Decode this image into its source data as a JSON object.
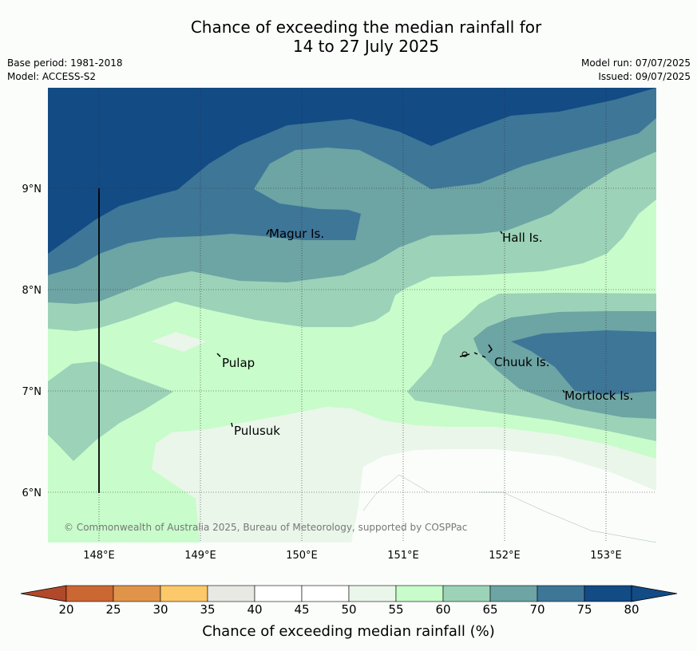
{
  "title_line1": "Chance of exceeding the median rainfall for",
  "title_line2": "14 to 27 July 2025",
  "meta": {
    "base_period": "Base period: 1981-2018",
    "model": "Model: ACCESS-S2",
    "model_run": "Model run: 07/07/2025",
    "issued": "Issued: 09/07/2025"
  },
  "map": {
    "lat_labels": [
      "9°N",
      "8°N",
      "7°N",
      "6°N"
    ],
    "lon_labels": [
      "148°E",
      "149°E",
      "150°E",
      "151°E",
      "152°E",
      "153°E"
    ],
    "places": [
      "Magur Is.",
      "Hall Is.",
      "Pulap",
      "Chuuk Is.",
      "Mortlock Is.",
      "Pulusuk"
    ],
    "copyright": "© Commonwealth of Australia 2025, Bureau of Meteorology, supported by COSPPac"
  },
  "colorbar": {
    "ticks": [
      "20",
      "25",
      "30",
      "35",
      "40",
      "45",
      "50",
      "55",
      "60",
      "65",
      "70",
      "75",
      "80"
    ],
    "colors": [
      "#b1482a",
      "#cb6733",
      "#e0944a",
      "#fbc86a",
      "#e9e9e4",
      "#ffffff",
      "#ffffff",
      "#eaf6ea",
      "#c8fcca",
      "#9cd2b8",
      "#6da4a4",
      "#3e7698",
      "#134b85"
    ],
    "title": "Chance of exceeding median rainfall (%)"
  }
}
